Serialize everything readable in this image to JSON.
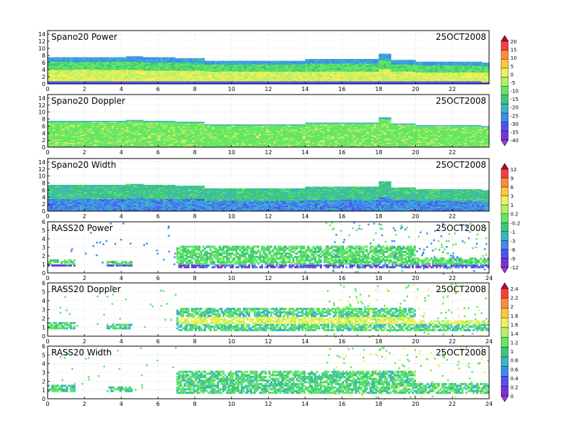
{
  "chart_data": [
    {
      "type": "heatmap",
      "title": "Spano20  Power",
      "date_label": "25OCT2008",
      "x_ticks": [
        "0",
        "2",
        "4",
        "6",
        "8",
        "10",
        "12",
        "14",
        "16",
        "18",
        "20",
        "22"
      ],
      "y_ticks": [
        "0",
        "2",
        "4",
        "6",
        "8",
        "10",
        "12",
        "14"
      ],
      "ylim": [
        0,
        15
      ],
      "xlim": [
        0,
        24
      ],
      "grid": true,
      "top_height": [
        {
          "t": 0,
          "h": 7.6
        },
        {
          "t": 4.2,
          "h": 7.8
        },
        {
          "t": 5.2,
          "h": 7.5
        },
        {
          "t": 6.9,
          "h": 7.3
        },
        {
          "t": 8.5,
          "h": 6.6
        },
        {
          "t": 14,
          "h": 7.0
        },
        {
          "t": 18,
          "h": 8.4
        },
        {
          "t": 18.6,
          "h": 6.8
        },
        {
          "t": 20,
          "h": 6.3
        },
        {
          "t": 23.5,
          "h": 6.1
        }
      ]
    },
    {
      "type": "heatmap",
      "title": "Spano20  Doppler",
      "date_label": "25OCT2008",
      "x_ticks": [
        "0",
        "2",
        "4",
        "6",
        "8",
        "10",
        "12",
        "14",
        "16",
        "18",
        "20",
        "22"
      ],
      "y_ticks": [
        "0",
        "2",
        "4",
        "6",
        "8",
        "10",
        "12",
        "14"
      ],
      "ylim": [
        0,
        15
      ],
      "xlim": [
        0,
        24
      ],
      "grid": true,
      "top_height": [
        {
          "t": 0,
          "h": 7.6
        },
        {
          "t": 4.2,
          "h": 7.8
        },
        {
          "t": 5.2,
          "h": 7.5
        },
        {
          "t": 6.9,
          "h": 7.3
        },
        {
          "t": 8.5,
          "h": 6.6
        },
        {
          "t": 14,
          "h": 7.0
        },
        {
          "t": 18,
          "h": 8.4
        },
        {
          "t": 18.6,
          "h": 6.8
        },
        {
          "t": 20,
          "h": 6.3
        },
        {
          "t": 23.5,
          "h": 6.1
        }
      ]
    },
    {
      "type": "heatmap",
      "title": "Spano20  Width",
      "date_label": "25OCT2008",
      "x_ticks": [
        "0",
        "2",
        "4",
        "6",
        "8",
        "10",
        "12",
        "14",
        "16",
        "18",
        "20",
        "22"
      ],
      "y_ticks": [
        "0",
        "2",
        "4",
        "6",
        "8",
        "10",
        "12",
        "14"
      ],
      "ylim": [
        0,
        15
      ],
      "xlim": [
        0,
        24
      ],
      "grid": true,
      "top_height": [
        {
          "t": 0,
          "h": 7.6
        },
        {
          "t": 4.2,
          "h": 7.8
        },
        {
          "t": 5.2,
          "h": 7.5
        },
        {
          "t": 6.9,
          "h": 7.3
        },
        {
          "t": 8.5,
          "h": 6.6
        },
        {
          "t": 14,
          "h": 7.0
        },
        {
          "t": 18,
          "h": 8.4
        },
        {
          "t": 18.6,
          "h": 6.8
        },
        {
          "t": 20,
          "h": 6.3
        },
        {
          "t": 23.5,
          "h": 6.1
        }
      ]
    },
    {
      "type": "heatmap",
      "title": "RASS20  Power",
      "date_label": "25OCT2008",
      "x_ticks": [
        "0",
        "2",
        "4",
        "6",
        "8",
        "10",
        "12",
        "14",
        "16",
        "18",
        "20",
        "22",
        "24"
      ],
      "y_ticks": [
        "0",
        "1",
        "2",
        "3",
        "4",
        "5",
        "6"
      ],
      "ylim": [
        0,
        6
      ],
      "xlim": [
        0,
        24
      ],
      "grid": true,
      "coverage": [
        {
          "t0": 0,
          "t1": 1.5,
          "h0": 0.8,
          "h1": 1.5
        },
        {
          "t0": 3.2,
          "t1": 4.5,
          "h0": 0.8,
          "h1": 1.3
        },
        {
          "t0": 7,
          "t1": 20,
          "h0": 0.6,
          "h1": 3.2
        },
        {
          "t0": 20,
          "t1": 24,
          "h0": 0.6,
          "h1": 1.6
        }
      ]
    },
    {
      "type": "heatmap",
      "title": "RASS20  Doppler",
      "date_label": "25OCT2008",
      "x_ticks": [
        "0",
        "2",
        "4",
        "6",
        "8",
        "10",
        "12",
        "14",
        "16",
        "18",
        "20",
        "22",
        "24"
      ],
      "y_ticks": [
        "0",
        "1",
        "2",
        "3",
        "4",
        "5",
        "6"
      ],
      "ylim": [
        0,
        6
      ],
      "xlim": [
        0,
        24
      ],
      "grid": true,
      "coverage": [
        {
          "t0": 0,
          "t1": 1.5,
          "h0": 0.8,
          "h1": 1.5
        },
        {
          "t0": 3.2,
          "t1": 4.5,
          "h0": 0.8,
          "h1": 1.3
        },
        {
          "t0": 7,
          "t1": 20,
          "h0": 0.6,
          "h1": 3.2
        },
        {
          "t0": 20,
          "t1": 24,
          "h0": 0.6,
          "h1": 1.6
        }
      ]
    },
    {
      "type": "heatmap",
      "title": "RASS20  Width",
      "date_label": "25OCT2008",
      "x_ticks": [
        "0",
        "2",
        "4",
        "6",
        "8",
        "10",
        "12",
        "14",
        "16",
        "18",
        "20",
        "22",
        "24"
      ],
      "y_ticks": [
        "0",
        "1",
        "2",
        "3",
        "4",
        "5",
        "6"
      ],
      "ylim": [
        0,
        6
      ],
      "xlim": [
        0,
        24
      ],
      "grid": true,
      "coverage": [
        {
          "t0": 0,
          "t1": 1.5,
          "h0": 0.8,
          "h1": 1.5
        },
        {
          "t0": 3.2,
          "t1": 4.5,
          "h0": 0.8,
          "h1": 1.3
        },
        {
          "t0": 7,
          "t1": 20,
          "h0": 0.6,
          "h1": 3.2
        },
        {
          "t0": 20,
          "t1": 24,
          "h0": 0.6,
          "h1": 1.6
        }
      ]
    }
  ],
  "colorbars": [
    {
      "labels": [
        "20",
        "15",
        "10",
        "5",
        "0",
        "-5",
        "-10",
        "-15",
        "-20",
        "-25",
        "-30",
        "-35",
        "-40"
      ],
      "colors": [
        "#c8003c",
        "#ff3c3c",
        "#ff8c3c",
        "#ffc83c",
        "#f0f05a",
        "#b4f064",
        "#64e664",
        "#3cc878",
        "#3cb4c8",
        "#3c8cf0",
        "#5050f0",
        "#7832dc",
        "#a03cdc"
      ]
    },
    {
      "labels": [
        "12",
        "9",
        "6",
        "3",
        "1",
        "0.2",
        "-0.2",
        "-1",
        "-3",
        "-6",
        "-9",
        "-12"
      ],
      "colors": [
        "#c8003c",
        "#ff3c3c",
        "#ff8c3c",
        "#ffc83c",
        "#f0f05a",
        "#b4f064",
        "#64e664",
        "#3cc878",
        "#3cb4c8",
        "#3c8cf0",
        "#5050f0",
        "#7832dc",
        "#a03cdc"
      ]
    },
    {
      "labels": [
        "2.4",
        "2.2",
        "2",
        "1.8",
        "1.6",
        "1.4",
        "1.2",
        "1",
        "0.8",
        "0.6",
        "0.4",
        "0.2",
        "0"
      ],
      "colors": [
        "#c8003c",
        "#ff3c3c",
        "#ff8c3c",
        "#ffc83c",
        "#f0f05a",
        "#b4f064",
        "#64e664",
        "#3cc878",
        "#3cb4c8",
        "#3c8cf0",
        "#5050f0",
        "#7832dc",
        "#a03cdc"
      ]
    }
  ]
}
